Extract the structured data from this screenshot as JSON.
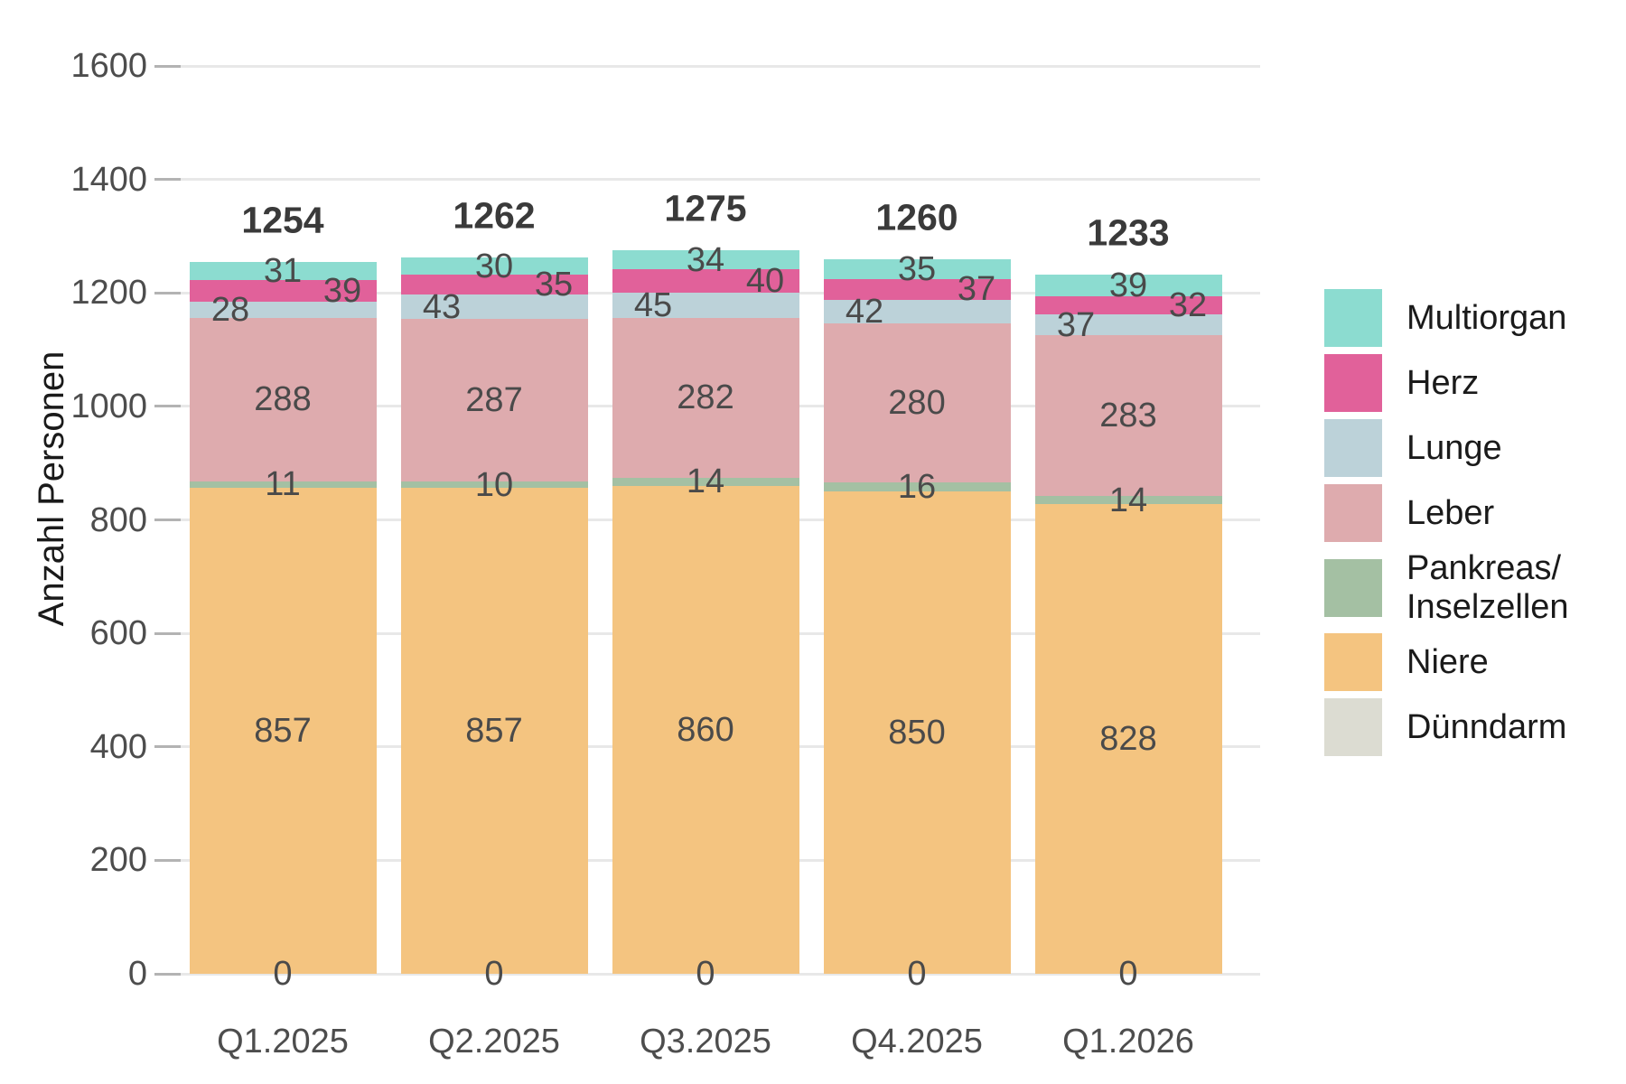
{
  "figure": {
    "background": "#FFFFFF"
  },
  "chart_data": {
    "type": "bar",
    "stacked": true,
    "orientation": "vertical",
    "title": "",
    "xlabel": "",
    "ylabel": "Anzahl Personen",
    "categories": [
      "Q1.2025",
      "Q2.2025",
      "Q3.2025",
      "Q4.2025",
      "Q1.2026"
    ],
    "totals": [
      1254,
      1262,
      1275,
      1260,
      1233
    ],
    "series": [
      {
        "name": "Dünndarm",
        "color": "#DCDCD2",
        "legend_lines": [
          "Dünndarm"
        ],
        "values": [
          0,
          0,
          0,
          0,
          0
        ]
      },
      {
        "name": "Niere",
        "color": "#F4C480",
        "legend_lines": [
          "Niere"
        ],
        "values": [
          857,
          857,
          860,
          850,
          828
        ]
      },
      {
        "name": "Pankreas/Inselzellen",
        "color": "#A4C0A3",
        "legend_lines": [
          "Pankreas/",
          "Inselzellen"
        ],
        "values": [
          11,
          10,
          14,
          16,
          14
        ]
      },
      {
        "name": "Leber",
        "color": "#DEABAE",
        "legend_lines": [
          "Leber"
        ],
        "values": [
          288,
          287,
          282,
          280,
          283
        ]
      },
      {
        "name": "Lunge",
        "color": "#BCD2D9",
        "legend_lines": [
          "Lunge"
        ],
        "values": [
          28,
          43,
          45,
          42,
          37
        ]
      },
      {
        "name": "Herz",
        "color": "#E1619A",
        "legend_lines": [
          "Herz"
        ],
        "values": [
          39,
          35,
          40,
          37,
          32
        ]
      },
      {
        "name": "Multiorgan",
        "color": "#8CDCD0",
        "legend_lines": [
          "Multiorgan"
        ],
        "values": [
          31,
          30,
          34,
          35,
          39
        ]
      }
    ],
    "legend_order_top_to_bottom": [
      "Multiorgan",
      "Herz",
      "Lunge",
      "Leber",
      "Pankreas/Inselzellen",
      "Niere",
      "Dünndarm"
    ],
    "legend_position": "right",
    "grid": true,
    "y_axis": {
      "min": 0,
      "max": 1600,
      "step": 200,
      "tick_labels": [
        "0",
        "200",
        "400",
        "600",
        "800",
        "1000",
        "1200",
        "1400",
        "1600"
      ]
    },
    "colors": {
      "gridline": "#E8E8E8",
      "axis_tick": "#B3B3B3",
      "tick_text": "#4D4D4D",
      "segment_label_text": "#4A4A4A",
      "total_label_text": "#3A3A3A",
      "legend_text": "#1A1A1A",
      "background": "#FFFFFF"
    }
  }
}
